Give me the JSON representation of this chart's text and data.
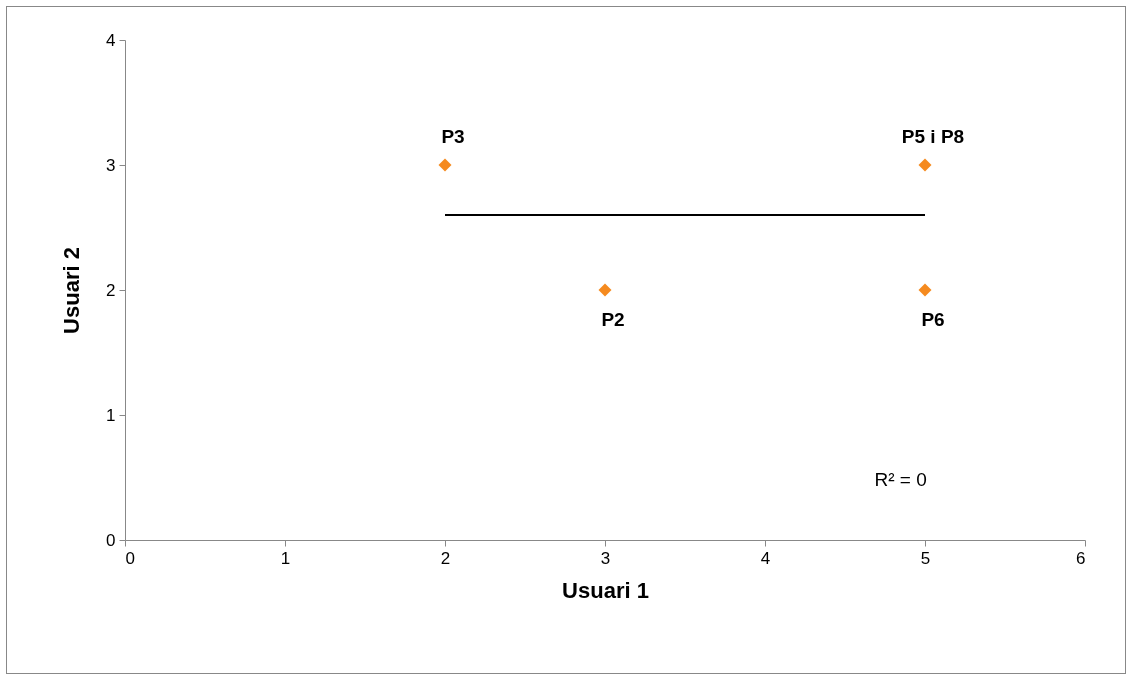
{
  "chart_data": {
    "type": "scatter",
    "xlabel": "Usuari 1",
    "ylabel": "Usuari 2",
    "xlim": [
      0,
      6
    ],
    "xticks": [
      0,
      1,
      2,
      3,
      4,
      5,
      6
    ],
    "ylim": [
      0,
      4
    ],
    "yticks": [
      0,
      1,
      2,
      3,
      4
    ],
    "grid": false,
    "marker": "diamond",
    "series": [
      {
        "color": "#f58a1f",
        "x": [
          2,
          3,
          5,
          5
        ],
        "values": [
          3,
          2,
          3,
          2
        ]
      },
      {
        "type": "line",
        "marker": "none",
        "color": "#000000",
        "x": [
          2,
          5
        ],
        "values": [
          2.6,
          2.6
        ]
      }
    ],
    "annotations": [
      {
        "text": "P3",
        "x": 2,
        "y": 3
      },
      {
        "text": "P2",
        "x": 3,
        "y": 2
      },
      {
        "text": "P5 i P8",
        "x": 5,
        "y": 3
      },
      {
        "text": "P6",
        "x": 5,
        "y": 2
      },
      "R² = 0"
    ]
  }
}
